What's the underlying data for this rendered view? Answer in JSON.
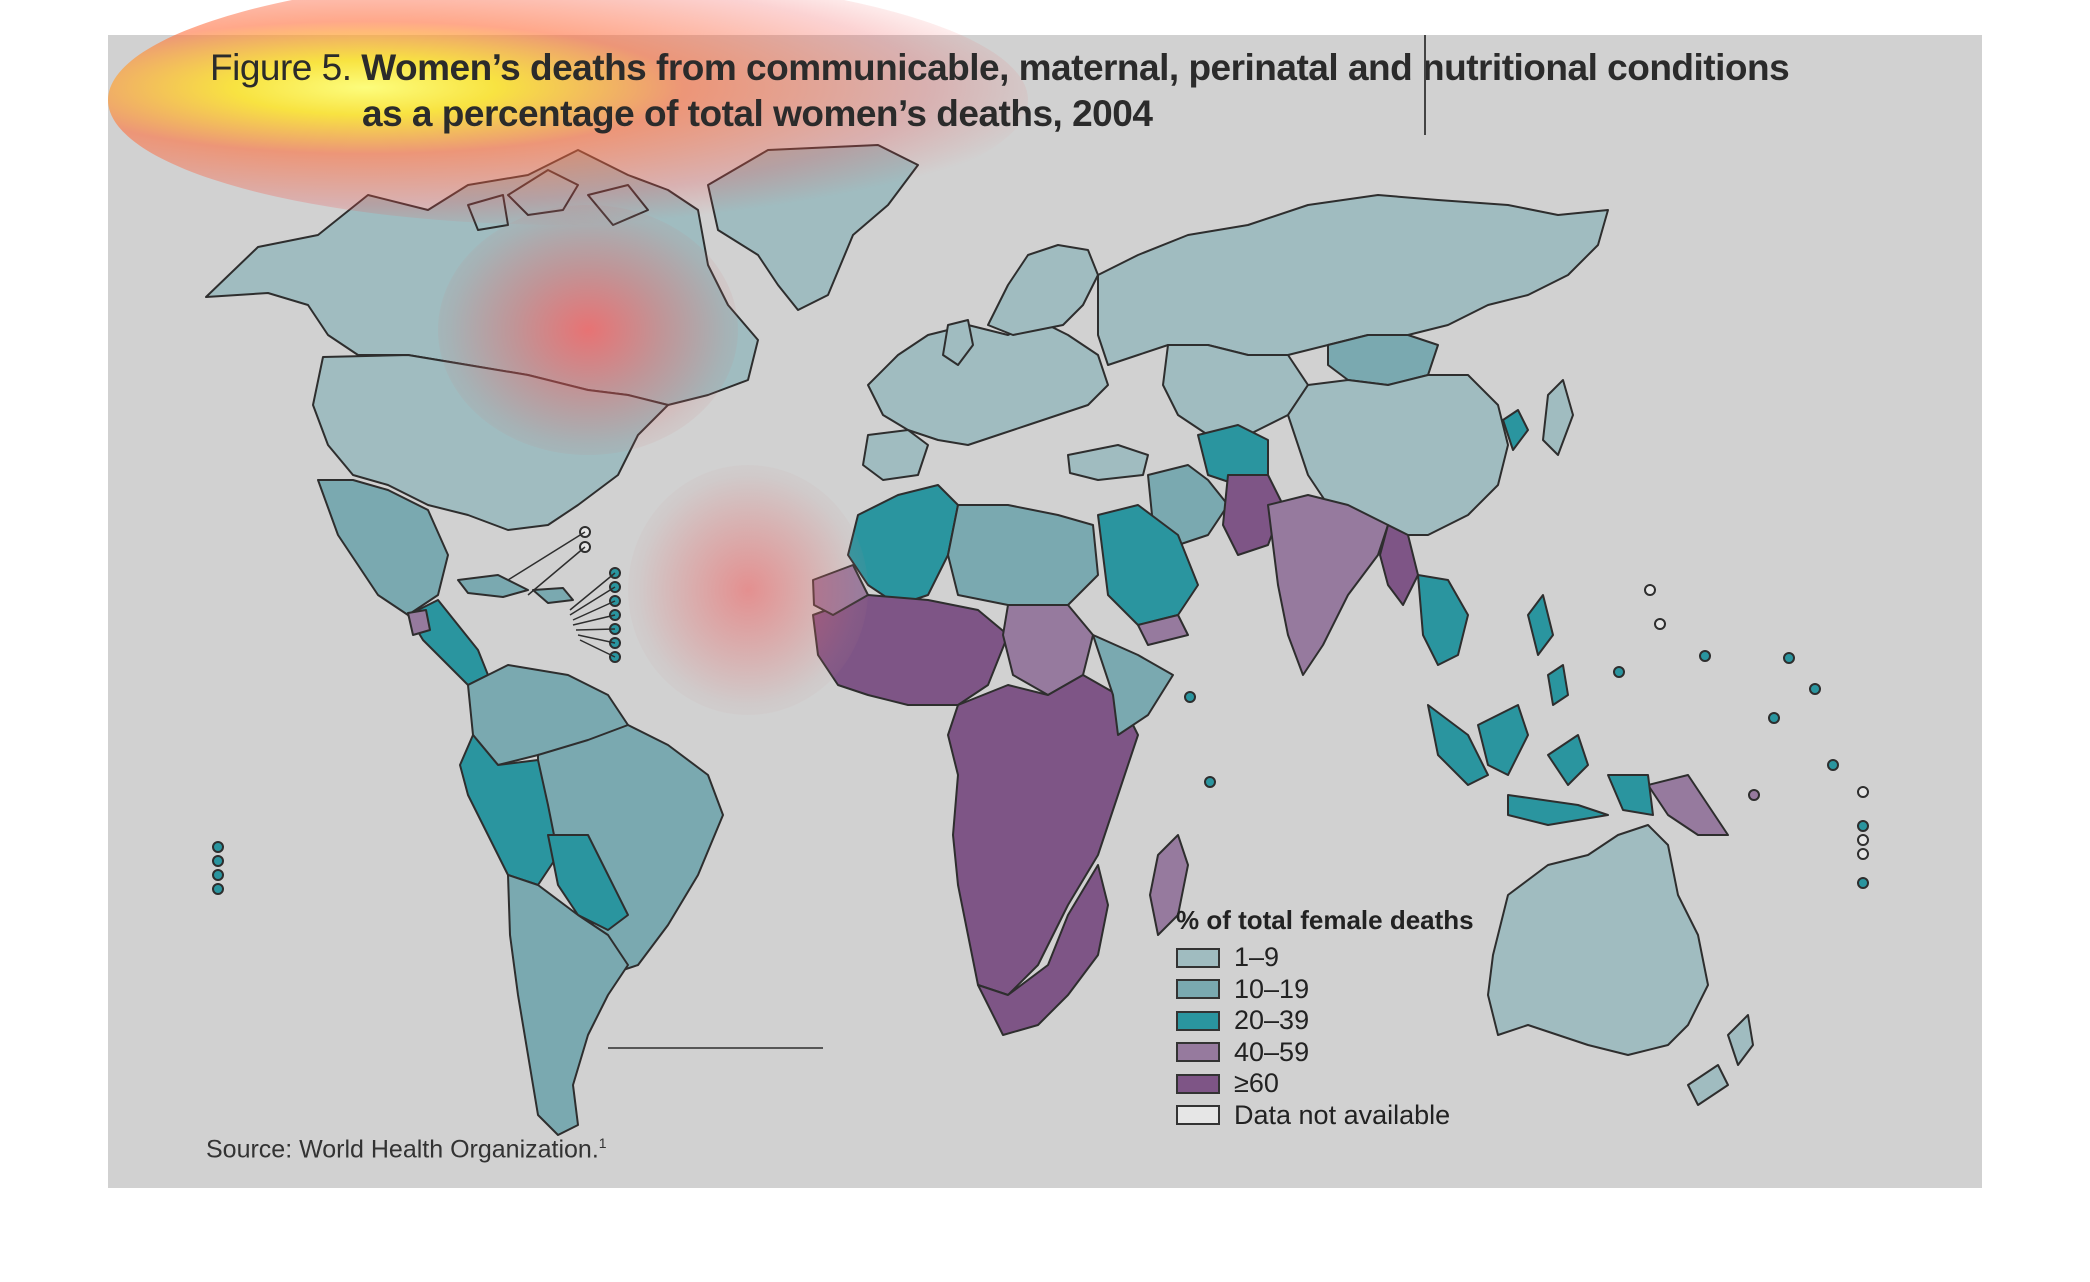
{
  "figure": {
    "prefix": "Figure 5.",
    "title_line1": "Women’s deaths from communicable, maternal, perinatal and nutritional conditions",
    "title_line2": "as a percentage of total women’s deaths, 2004"
  },
  "legend": {
    "title": "% of total female deaths",
    "items": [
      {
        "label": "1–9",
        "color": "#a0bcc0"
      },
      {
        "label": "10–19",
        "color": "#7aa9b0"
      },
      {
        "label": "20–39",
        "color": "#2a959f"
      },
      {
        "label": "40–59",
        "color": "#967a9e"
      },
      {
        "label": "≥60",
        "color": "#7e5586"
      },
      {
        "label": "Data not available",
        "color": "#e6e6e6"
      }
    ]
  },
  "source": {
    "text": "Source: World Health Organization.",
    "ref": "1"
  },
  "colors": {
    "background": "#d1d1d1",
    "border": "#2e2e2e"
  }
}
